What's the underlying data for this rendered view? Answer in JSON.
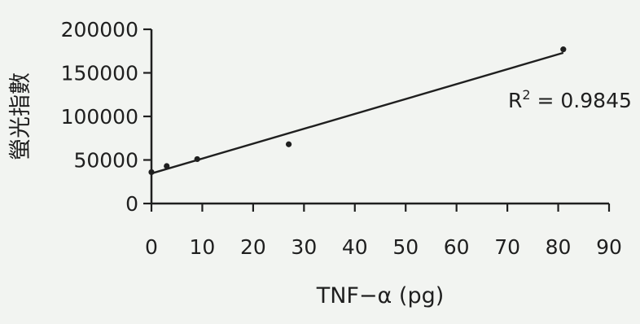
{
  "chart_data": {
    "type": "scatter",
    "xlabel": "TNF−α (pg)",
    "ylabel": "螢光指數",
    "xlim": [
      0,
      90
    ],
    "ylim": [
      0,
      200000
    ],
    "x_ticks": [
      0,
      10,
      20,
      30,
      40,
      50,
      60,
      70,
      80,
      90
    ],
    "y_ticks": [
      0,
      50000,
      100000,
      150000,
      200000
    ],
    "x_tick_labels": [
      "0",
      "10",
      "20",
      "30",
      "40",
      "50",
      "60",
      "70",
      "80",
      "90"
    ],
    "y_tick_labels": [
      "0",
      "50000",
      "100000",
      "150000",
      "200000"
    ],
    "grid": false,
    "series": [
      {
        "x": [
          0,
          3,
          9,
          27,
          81
        ],
        "y": [
          36000,
          43000,
          51000,
          68000,
          177000
        ]
      }
    ],
    "trendline": {
      "type": "linear",
      "x": [
        0,
        81
      ],
      "y": [
        34500,
        173000
      ]
    },
    "annotation": {
      "prefix": "R",
      "sup": "2",
      "suffix": " = 0.9845"
    },
    "colors": {
      "background": "#f2f4f1",
      "ink": "#1f1f1f"
    }
  }
}
